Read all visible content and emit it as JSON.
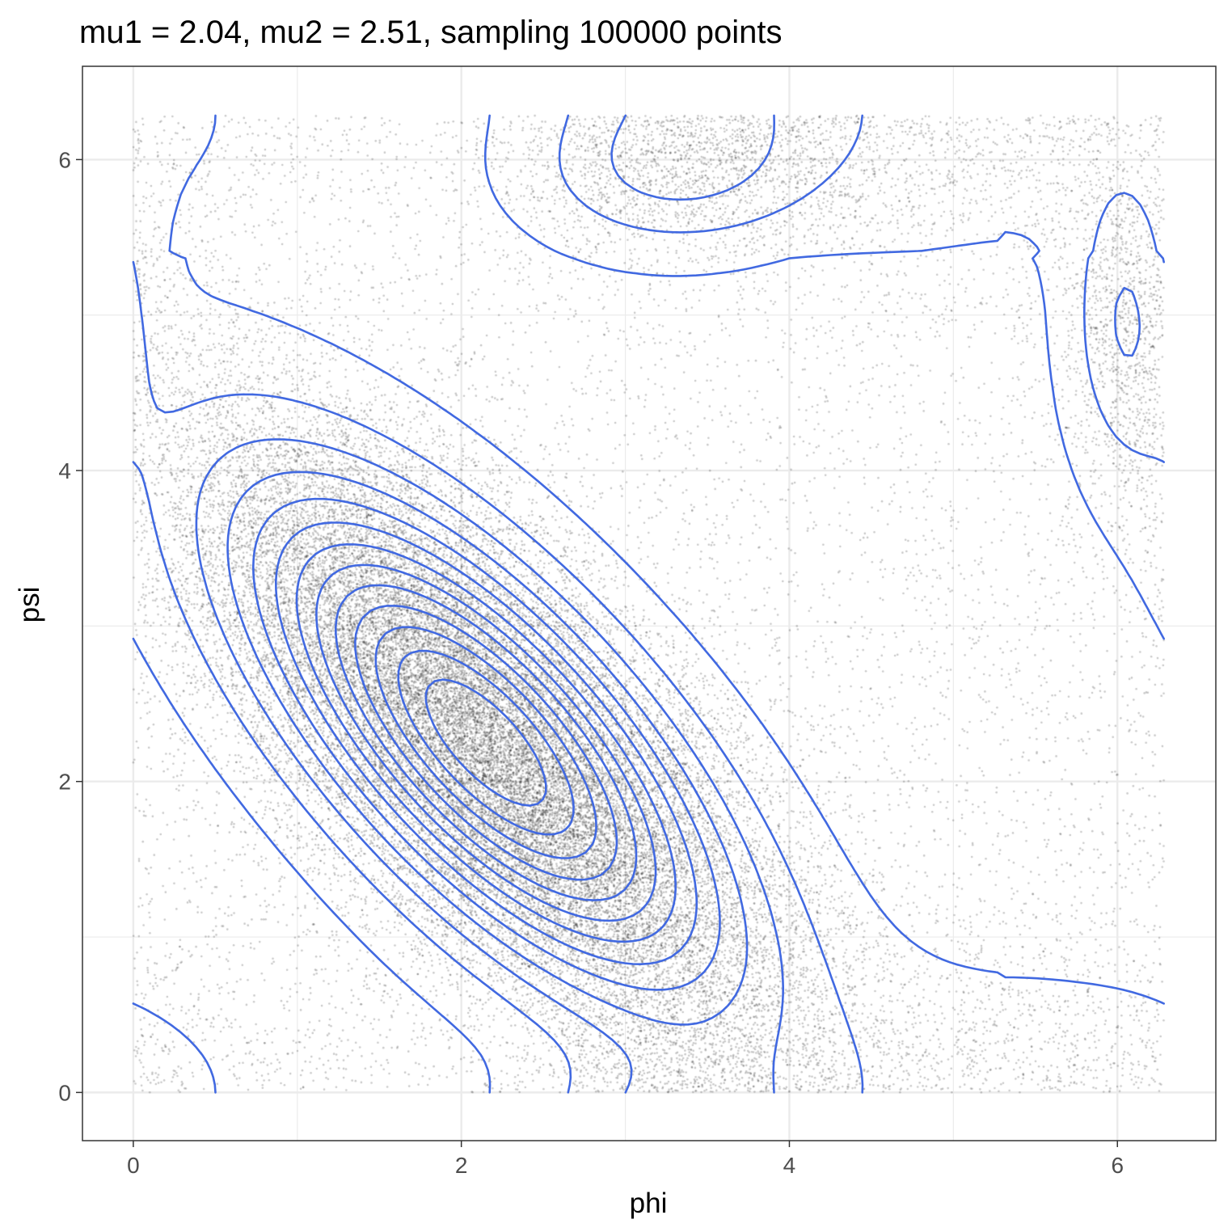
{
  "chart_data": {
    "type": "scatter",
    "title": "mu1 = 2.04, mu2 = 2.51, sampling 100000 points",
    "xlabel": "phi",
    "ylabel": "psi",
    "xlim": [
      -0.31,
      6.6
    ],
    "ylim": [
      -0.31,
      6.6
    ],
    "x_ticks": [
      0,
      2,
      4,
      6
    ],
    "y_ticks": [
      0,
      2,
      4,
      6
    ],
    "x_tick_labels": [
      "0",
      "2",
      "4",
      "6"
    ],
    "y_tick_labels": [
      "0",
      "2",
      "4",
      "6"
    ],
    "grid": true,
    "theme": "bw",
    "series": [
      {
        "kind": "points",
        "n": 100000,
        "distribution": "bivariate von Mises (circular, periodic on [0, 2π])",
        "mu1": 2.04,
        "mu2": 2.51,
        "color": "#000000",
        "alpha": 0.2
      },
      {
        "kind": "density-contours",
        "color": "#4169E1",
        "levels": 13,
        "modes": [
          {
            "phi": 2.15,
            "psi": 2.2
          },
          {
            "phi": 3.25,
            "psi": 5.95
          },
          {
            "phi": 6.05,
            "psi": 5.0
          }
        ]
      }
    ],
    "colors": {
      "points": "#000000",
      "contours": "#4169E1",
      "grid": "#ebebeb",
      "panel_border": "#333333",
      "tick_text": "#4d4d4d"
    }
  }
}
